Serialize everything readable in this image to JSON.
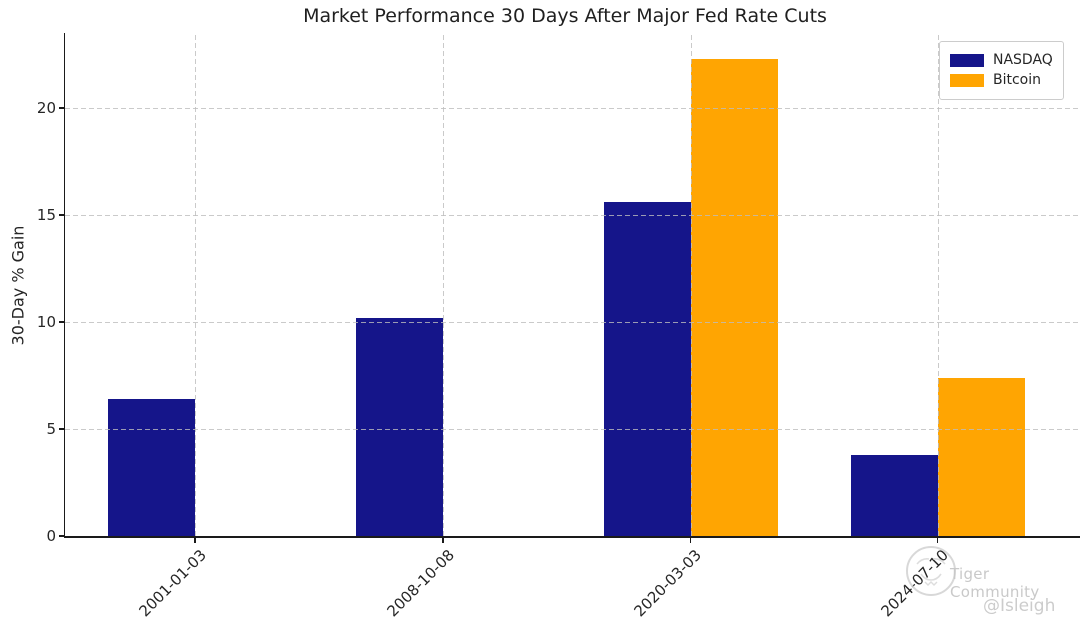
{
  "chart_data": {
    "type": "bar",
    "title": "Market Performance 30 Days After Major Fed Rate Cuts",
    "xlabel": "",
    "ylabel": "30-Day % Gain",
    "categories": [
      "2001-01-03",
      "2008-10-08",
      "2020-03-03",
      "2024-07-10"
    ],
    "series": [
      {
        "name": "NASDAQ",
        "color": "#15158A",
        "values": [
          6.4,
          10.2,
          15.6,
          3.8
        ]
      },
      {
        "name": "Bitcoin",
        "color": "#FFA502",
        "values": [
          null,
          null,
          22.3,
          7.4
        ]
      }
    ],
    "yticks": [
      0,
      5,
      10,
      15,
      20
    ],
    "ylim": [
      0,
      23.5
    ],
    "grid": true,
    "grid_style": "dashed",
    "legend_position": "upper right"
  },
  "watermark": {
    "brand": "Tiger Community",
    "handle": "@Isleigh",
    "logo": "tiger-circle",
    "color": "#c9c9c9"
  }
}
